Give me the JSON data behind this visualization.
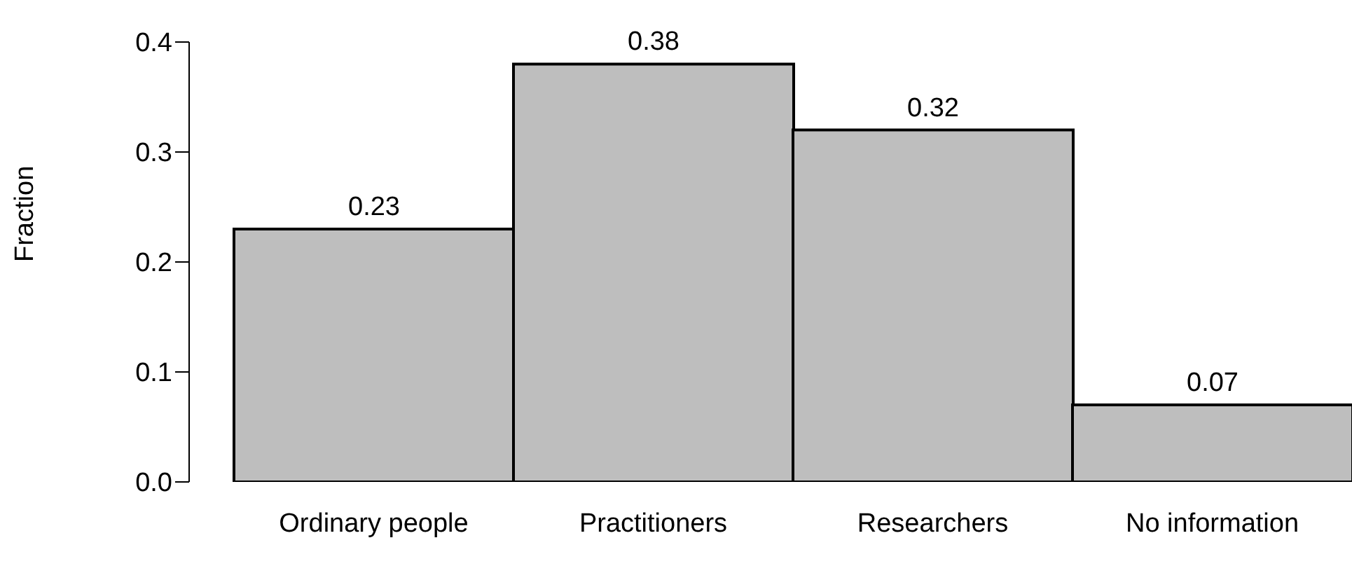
{
  "chart_data": {
    "type": "bar",
    "ylabel": "Fraction",
    "categories": [
      "Ordinary people",
      "Practitioners",
      "Researchers",
      "No information"
    ],
    "values": [
      0.23,
      0.38,
      0.32,
      0.07
    ],
    "color": "#bebebe",
    "ylim": [
      0,
      0.4
    ],
    "yticks": [
      {
        "value": 0,
        "label": "0.0"
      },
      0.1,
      0.2,
      0.3,
      0.4
    ],
    "data_labels": true
  }
}
